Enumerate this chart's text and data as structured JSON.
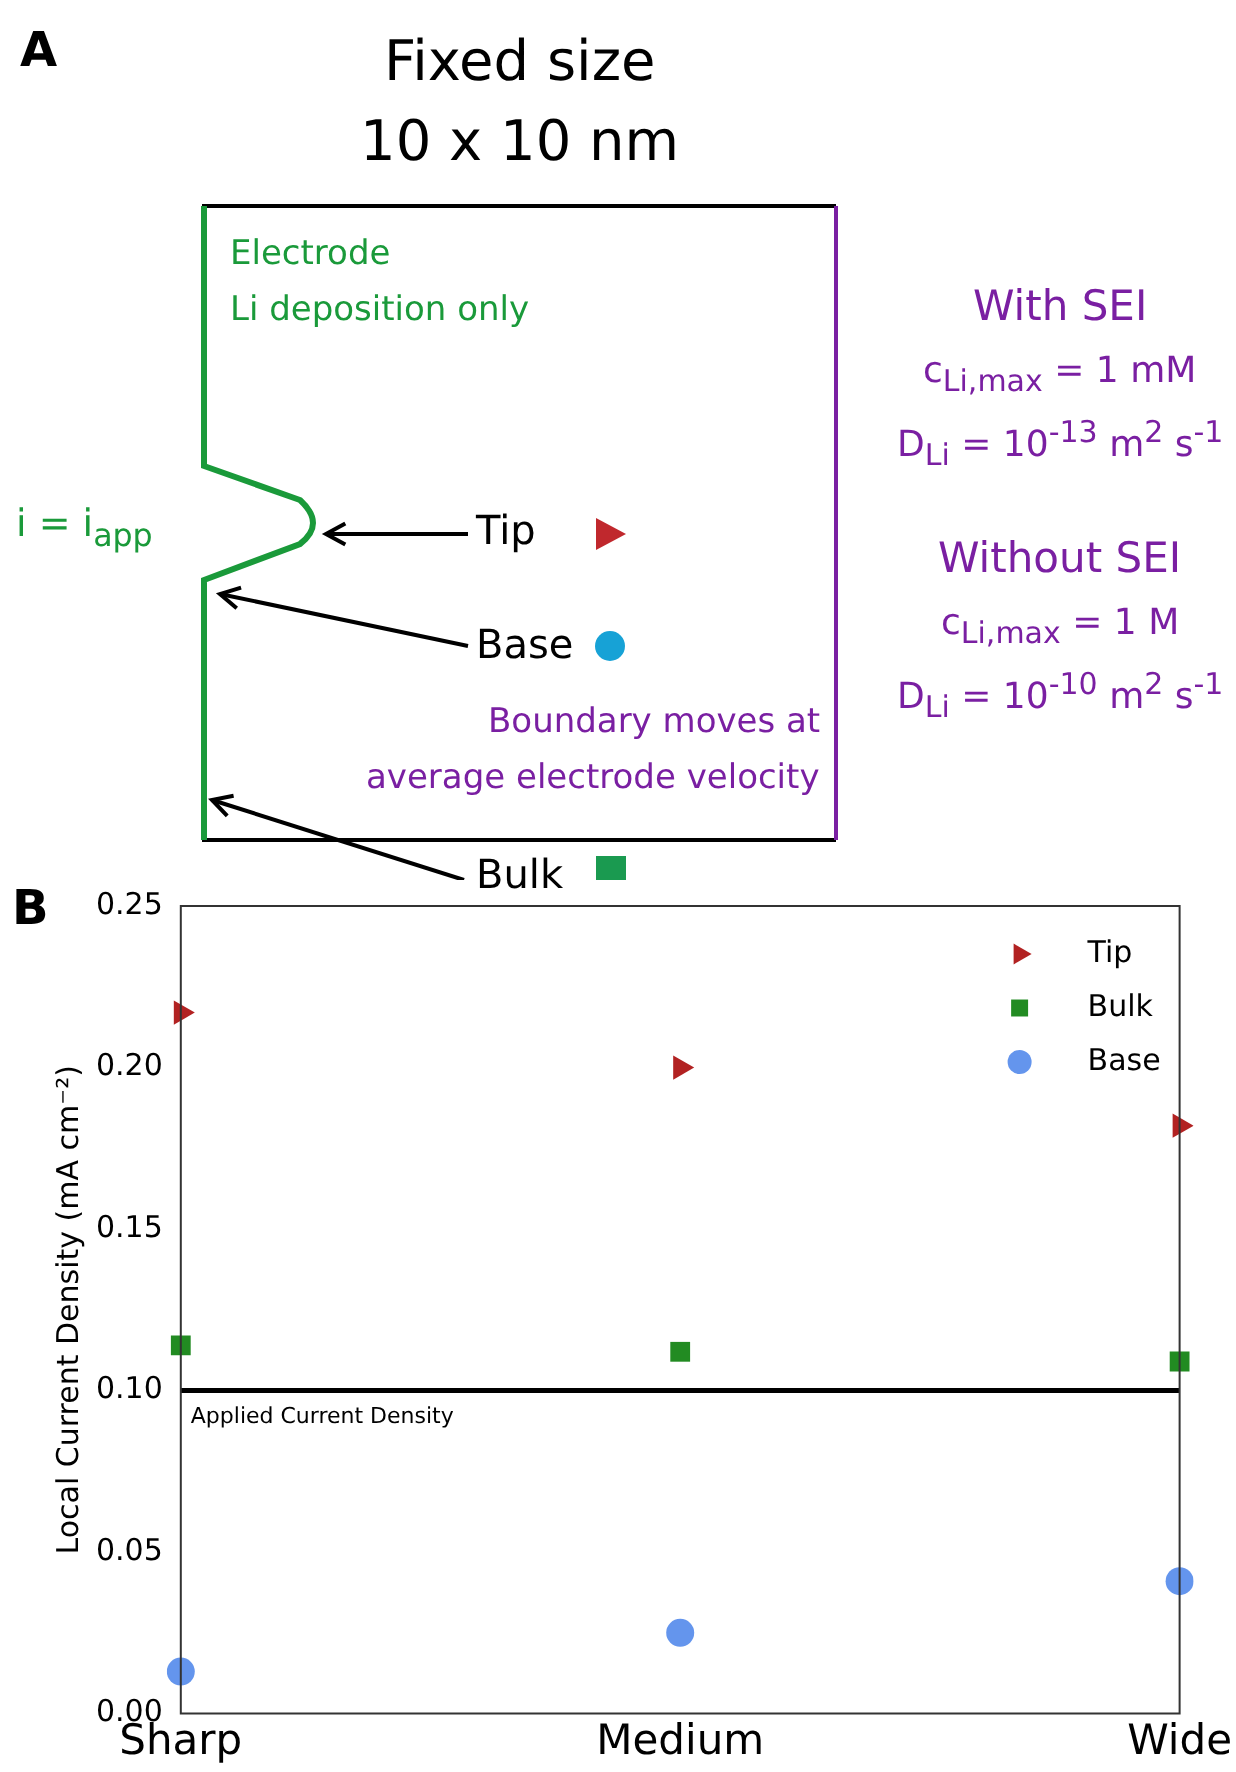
{
  "chart_data": [
    {
      "type": "other",
      "title": "A",
      "annotations": [
        "Fixed size",
        "10 x 10 nm",
        "Electrode",
        "Li deposition only",
        "i = i$_{app}$",
        "Tip",
        "Base",
        "Bulk",
        "Boundary moves at",
        "average electrode velocity",
        "With SEI",
        "c$_{Li,max}$ = 1 mM",
        "D$_{Li}$ = 10$^{-13}$ m$^{2}$ s$^{-1}$",
        "Without SEI",
        "c$_{Li,max}$ = 1 M",
        "D$_{Li}$ = 10$^{-10}$ m$^{2}$ s$^{-1}$"
      ]
    },
    {
      "type": "scatter",
      "title": "B",
      "ylabel": "Local Current Density (mA cm⁻²)",
      "categories": [
        "Sharp",
        "Medium",
        "Wide"
      ],
      "series": [
        {
          "name": "Tip",
          "color": "#b22222",
          "marker": "triangle",
          "values": [
            0.217,
            0.2,
            0.182
          ]
        },
        {
          "name": "Bulk",
          "color": "#228b22",
          "marker": "square",
          "values": [
            0.114,
            0.112,
            0.109
          ]
        },
        {
          "name": "Base",
          "color": "#6495ed",
          "marker": "circle",
          "values": [
            0.013,
            0.025,
            0.041
          ]
        }
      ],
      "ylim": [
        0,
        0.25
      ],
      "yticks": [
        {
          "value": 0,
          "label": "0.00"
        },
        {
          "value": 0.05,
          "label": "0.05"
        },
        {
          "value": 0.1,
          "label": "0.10"
        },
        {
          "value": 0.15,
          "label": "0.15"
        },
        {
          "value": 0.2,
          "label": "0.20"
        },
        {
          "value": 0.25,
          "label": "0.25"
        }
      ],
      "ref_lines": [
        {
          "axis": "y",
          "value": 0.1,
          "label": "Applied Current Density",
          "color": "#000000"
        }
      ],
      "legend": "top right",
      "grid": false
    }
  ]
}
